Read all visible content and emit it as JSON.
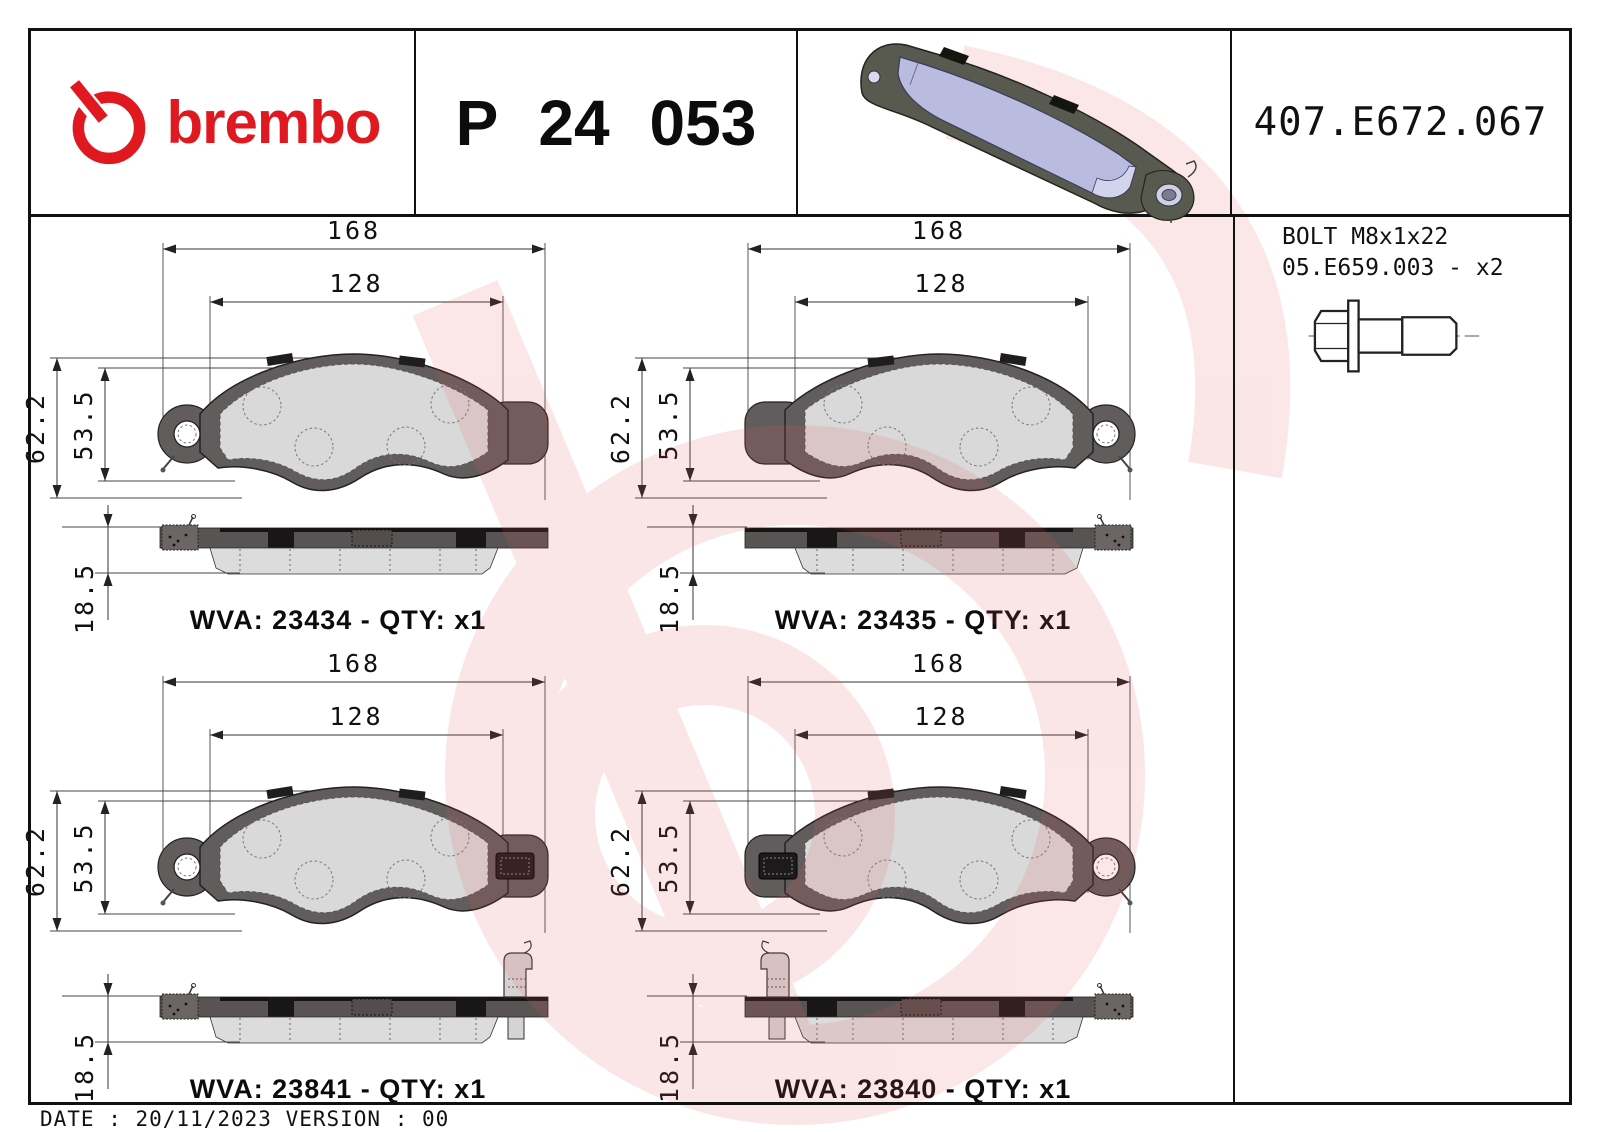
{
  "header": {
    "brand_name": "brembo",
    "part_number_groups": [
      "P",
      "24",
      "053"
    ],
    "reference_code": "407.E672.067"
  },
  "accessory": {
    "line1": "BOLT M8x1x22",
    "line2": "05.E659.003 - x2"
  },
  "footer": {
    "date_line": "DATE : 20/11/2023 VERSION : 00"
  },
  "colors": {
    "brand_red": "#e0181f",
    "ink": "#1a1a1a",
    "backing_gray": "#615d5c",
    "side_backing_gray": "#595454",
    "friction_gray": "#d9d9d9",
    "pad3d_face": "#b9bbdf",
    "pad3d_backing": "#585a50",
    "watermark_pink": "#e05858"
  },
  "quadrants": [
    {
      "wva_label": "WVA: 23434 - QTY: x1",
      "wva": "23434",
      "qty": "x1",
      "dims": {
        "width_outer": "168",
        "width_inner": "128",
        "height_outer": "62.2",
        "height_inner": "53.5",
        "thickness": "18.5"
      },
      "mirrored": false,
      "sensor": false
    },
    {
      "wva_label": "WVA: 23435 - QTY: x1",
      "wva": "23435",
      "qty": "x1",
      "dims": {
        "width_outer": "168",
        "width_inner": "128",
        "height_outer": "62.2",
        "height_inner": "53.5",
        "thickness": "18.5"
      },
      "mirrored": true,
      "sensor": false
    },
    {
      "wva_label": "WVA: 23841 - QTY: x1",
      "wva": "23841",
      "qty": "x1",
      "dims": {
        "width_outer": "168",
        "width_inner": "128",
        "height_outer": "62.2",
        "height_inner": "53.5",
        "thickness": "18.5"
      },
      "mirrored": false,
      "sensor": true
    },
    {
      "wva_label": "WVA: 23840 - QTY: x1",
      "wva": "23840",
      "qty": "x1",
      "dims": {
        "width_outer": "168",
        "width_inner": "128",
        "height_outer": "62.2",
        "height_inner": "53.5",
        "thickness": "18.5"
      },
      "mirrored": true,
      "sensor": true
    }
  ]
}
